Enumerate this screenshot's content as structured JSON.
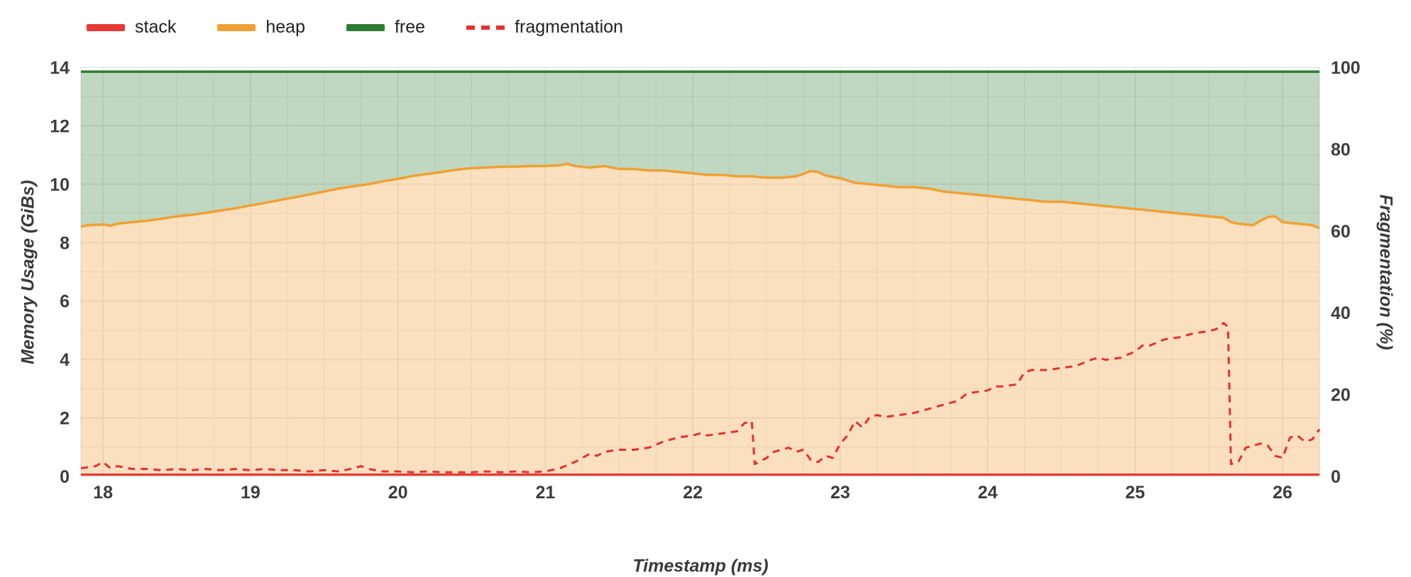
{
  "legend": [
    {
      "label": "stack",
      "color": "#e53935",
      "style": "solid"
    },
    {
      "label": "heap",
      "color": "#f0a035",
      "style": "solid"
    },
    {
      "label": "free",
      "color": "#2e7d32",
      "style": "solid"
    },
    {
      "label": "fragmentation",
      "color": "#e53030",
      "style": "dashed"
    }
  ],
  "chart_data": {
    "type": "area",
    "title": "",
    "xlabel": "Timestamp (ms)",
    "ylabel_left": "Memory Usage (GiBs)",
    "ylabel_right": "Fragmentation (%)",
    "xlim": [
      17.85,
      26.25
    ],
    "ylim_left": [
      0,
      14
    ],
    "ylim_right": [
      0,
      100
    ],
    "x_ticks": [
      18,
      19,
      20,
      21,
      22,
      23,
      24,
      25,
      26
    ],
    "y_ticks_left": [
      0,
      2,
      4,
      6,
      8,
      10,
      12,
      14
    ],
    "y_ticks_right": [
      0,
      20,
      40,
      60,
      80,
      100
    ],
    "grid": true,
    "legend_position": "top-left",
    "series": [
      {
        "name": "stack",
        "axis": "left",
        "type": "line",
        "color": "#e53935",
        "value": 0.06
      },
      {
        "name": "heap",
        "axis": "left",
        "type": "area",
        "color": "#f0a035",
        "fill_opacity": 0.32,
        "x": [
          17.85,
          17.9,
          18.0,
          18.05,
          18.1,
          18.2,
          18.3,
          18.4,
          18.5,
          18.6,
          18.7,
          18.8,
          18.9,
          19.0,
          19.1,
          19.2,
          19.3,
          19.4,
          19.5,
          19.6,
          19.7,
          19.8,
          19.9,
          20.0,
          20.1,
          20.2,
          20.3,
          20.4,
          20.5,
          20.6,
          20.7,
          20.8,
          20.9,
          21.0,
          21.1,
          21.15,
          21.2,
          21.3,
          21.4,
          21.5,
          21.6,
          21.7,
          21.8,
          21.9,
          22.0,
          22.1,
          22.2,
          22.3,
          22.4,
          22.5,
          22.6,
          22.7,
          22.75,
          22.8,
          22.85,
          22.9,
          23.0,
          23.1,
          23.2,
          23.3,
          23.4,
          23.5,
          23.6,
          23.7,
          23.8,
          23.9,
          24.0,
          24.1,
          24.2,
          24.3,
          24.4,
          24.5,
          24.6,
          24.7,
          24.8,
          24.9,
          25.0,
          25.1,
          25.2,
          25.3,
          25.4,
          25.5,
          25.6,
          25.65,
          25.7,
          25.8,
          25.85,
          25.9,
          25.95,
          26.0,
          26.1,
          26.2,
          26.25
        ],
        "y": [
          8.55,
          8.6,
          8.62,
          8.58,
          8.65,
          8.7,
          8.75,
          8.82,
          8.9,
          8.95,
          9.02,
          9.1,
          9.18,
          9.27,
          9.36,
          9.46,
          9.55,
          9.65,
          9.75,
          9.85,
          9.93,
          10.0,
          10.1,
          10.18,
          10.28,
          10.35,
          10.42,
          10.5,
          10.55,
          10.57,
          10.6,
          10.6,
          10.62,
          10.62,
          10.65,
          10.7,
          10.62,
          10.57,
          10.62,
          10.52,
          10.52,
          10.47,
          10.47,
          10.42,
          10.37,
          10.32,
          10.32,
          10.27,
          10.27,
          10.22,
          10.22,
          10.27,
          10.35,
          10.45,
          10.42,
          10.3,
          10.2,
          10.05,
          10.0,
          9.95,
          9.9,
          9.9,
          9.85,
          9.75,
          9.7,
          9.65,
          9.6,
          9.55,
          9.5,
          9.45,
          9.4,
          9.4,
          9.35,
          9.3,
          9.25,
          9.2,
          9.15,
          9.1,
          9.05,
          9.0,
          8.95,
          8.9,
          8.85,
          8.7,
          8.65,
          8.6,
          8.75,
          8.88,
          8.9,
          8.7,
          8.65,
          8.6,
          8.5
        ]
      },
      {
        "name": "free",
        "axis": "left",
        "type": "area-above-heap",
        "color": "#2e7d32",
        "fill_opacity": 0.3,
        "value": 13.85
      },
      {
        "name": "fragmentation",
        "axis": "right",
        "type": "dashed-line",
        "color": "#e53030",
        "x": [
          17.85,
          17.95,
          18.0,
          18.05,
          18.1,
          18.2,
          18.3,
          18.4,
          18.5,
          18.6,
          18.7,
          18.8,
          18.9,
          19.0,
          19.1,
          19.2,
          19.3,
          19.4,
          19.5,
          19.6,
          19.7,
          19.75,
          19.8,
          19.9,
          20.0,
          20.1,
          20.2,
          20.3,
          20.4,
          20.5,
          20.6,
          20.7,
          20.8,
          20.9,
          21.0,
          21.1,
          21.2,
          21.25,
          21.3,
          21.35,
          21.4,
          21.5,
          21.6,
          21.7,
          21.8,
          21.9,
          22.0,
          22.05,
          22.1,
          22.2,
          22.3,
          22.35,
          22.4,
          22.42,
          22.5,
          22.55,
          22.6,
          22.65,
          22.7,
          22.75,
          22.8,
          22.85,
          22.9,
          22.95,
          23.0,
          23.05,
          23.1,
          23.15,
          23.2,
          23.25,
          23.3,
          23.4,
          23.5,
          23.6,
          23.7,
          23.8,
          23.85,
          23.9,
          24.0,
          24.05,
          24.1,
          24.2,
          24.25,
          24.3,
          24.4,
          24.5,
          24.6,
          24.7,
          24.75,
          24.8,
          24.9,
          25.0,
          25.05,
          25.1,
          25.2,
          25.3,
          25.35,
          25.4,
          25.5,
          25.55,
          25.6,
          25.63,
          25.65,
          25.7,
          25.75,
          25.8,
          25.85,
          25.9,
          25.95,
          26.0,
          26.05,
          26.1,
          26.15,
          26.2,
          26.25
        ],
        "y": [
          2,
          2.5,
          3.5,
          2,
          2.5,
          1.8,
          1.8,
          1.5,
          1.8,
          1.5,
          1.8,
          1.5,
          1.8,
          1.5,
          1.8,
          1.5,
          1.5,
          1.2,
          1.5,
          1.2,
          2,
          2.5,
          1.8,
          1.2,
          1.2,
          1.0,
          1.2,
          1.0,
          1.0,
          1.0,
          1.2,
          1.0,
          1.2,
          1.0,
          1.2,
          2.0,
          3.5,
          4.5,
          5.5,
          5.0,
          6.0,
          6.5,
          6.5,
          7.0,
          8.5,
          9.5,
          10.0,
          10.5,
          10.0,
          10.5,
          11.0,
          13.0,
          13.5,
          3.0,
          4.5,
          6.0,
          6.5,
          7.0,
          6.0,
          6.5,
          4.0,
          3.5,
          5.0,
          4.5,
          8.0,
          10.0,
          13.5,
          12.0,
          14.5,
          15.0,
          14.5,
          15.0,
          15.5,
          16.5,
          17.5,
          18.5,
          20.0,
          20.5,
          21.0,
          22.0,
          22.0,
          22.5,
          25.5,
          26.0,
          26.0,
          26.5,
          27.0,
          28.5,
          29.0,
          28.5,
          29.0,
          30.5,
          32.0,
          32.0,
          33.5,
          34.0,
          34.5,
          35.0,
          35.5,
          36.0,
          37.5,
          36.5,
          3.0,
          3.5,
          7.0,
          7.5,
          8.0,
          7.5,
          5.0,
          4.5,
          9.5,
          10.0,
          8.5,
          9.0,
          11.5
        ]
      }
    ]
  }
}
